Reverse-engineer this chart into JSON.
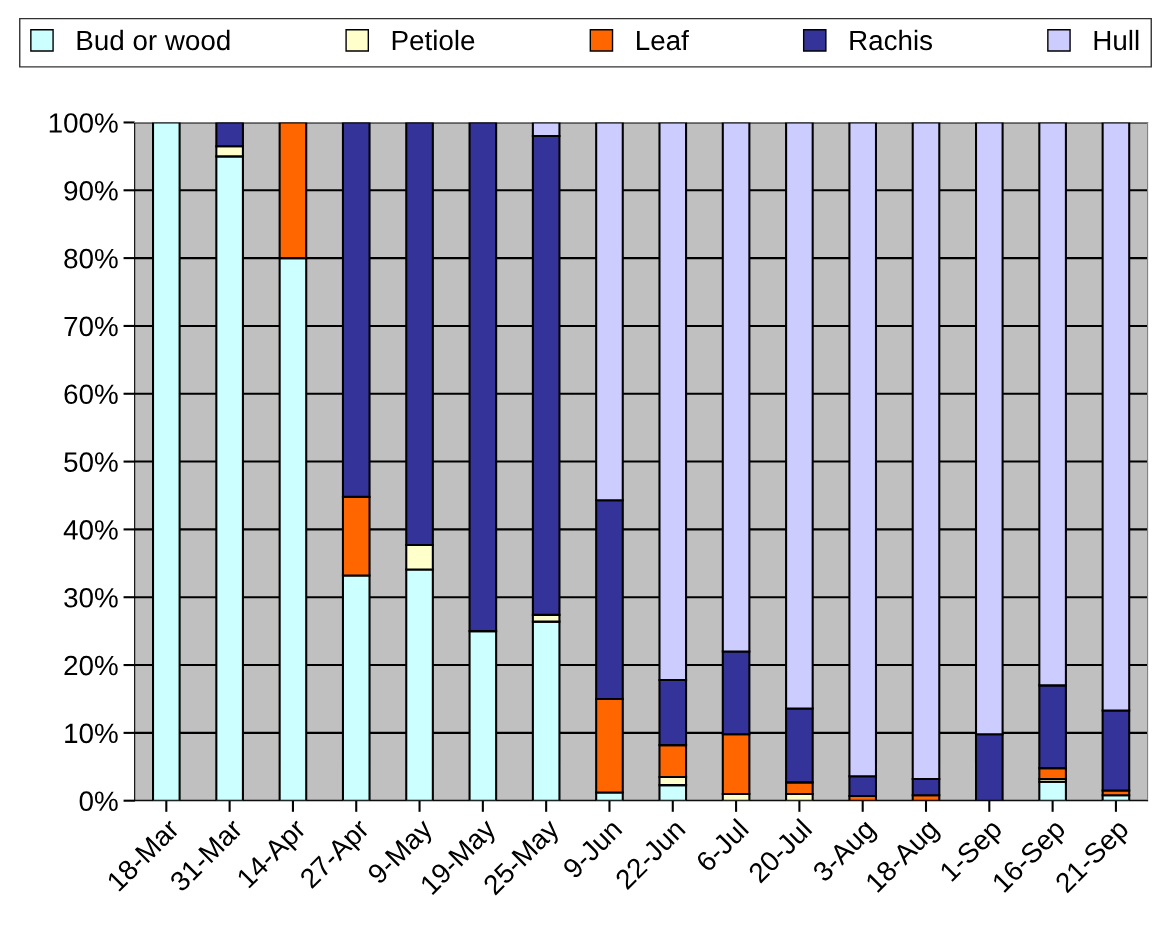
{
  "chart_data": {
    "type": "bar",
    "stacked": true,
    "categories": [
      "18-Mar",
      "31-Mar",
      "14-Apr",
      "27-Apr",
      "9-May",
      "19-May",
      "25-May",
      "9-Jun",
      "22-Jun",
      "6-Jul",
      "20-Jul",
      "3-Aug",
      "18-Aug",
      "1-Sep",
      "16-Sep",
      "21-Sep"
    ],
    "series": [
      {
        "name": "Bud or wood",
        "color": "#ccffff",
        "values": [
          100,
          95,
          80,
          33.2,
          34.1,
          25,
          26.4,
          1.2,
          2.3,
          0,
          0,
          0,
          0,
          0,
          2.8,
          0.8
        ]
      },
      {
        "name": "Petiole",
        "color": "#ffffcc",
        "values": [
          0,
          1.5,
          0,
          0,
          3.6,
          0,
          1,
          0,
          1.2,
          1,
          1,
          null,
          0,
          0,
          0.4,
          null
        ]
      },
      {
        "name": "Leaf",
        "color": "#ff6600",
        "values": [
          0,
          0,
          20,
          11.6,
          0,
          0,
          0,
          13.8,
          4.7,
          8.8,
          1.7,
          0.7,
          0.8,
          0,
          1.6,
          0.7
        ]
      },
      {
        "name": "Rachis",
        "color": "#333399",
        "values": [
          0,
          3.5,
          0,
          55.2,
          62.3,
          75,
          70.6,
          29.3,
          9.6,
          12.2,
          10.9,
          2.9,
          2.4,
          9.8,
          12.2,
          11.8
        ]
      },
      {
        "name": "Hull",
        "color": "#ccccff",
        "values": [
          0,
          0,
          0,
          0,
          0,
          0,
          2,
          55.7,
          82.2,
          78,
          86.4,
          96.4,
          96.8,
          90.2,
          83,
          86.7
        ]
      }
    ],
    "ylim": [
      0,
      100
    ],
    "yticks": [
      {
        "value": 0,
        "label": "0%"
      },
      {
        "value": 10,
        "label": "10%"
      },
      {
        "value": 20,
        "label": "20%"
      },
      {
        "value": 30,
        "label": "30%"
      },
      {
        "value": 40,
        "label": "40%"
      },
      {
        "value": 50,
        "label": "50%"
      },
      {
        "value": 60,
        "label": "60%"
      },
      {
        "value": 70,
        "label": "70%"
      },
      {
        "value": 80,
        "label": "80%"
      },
      {
        "value": 90,
        "label": "90%"
      },
      {
        "value": 100,
        "label": "100%"
      }
    ],
    "grid": "y",
    "legend": "top"
  }
}
